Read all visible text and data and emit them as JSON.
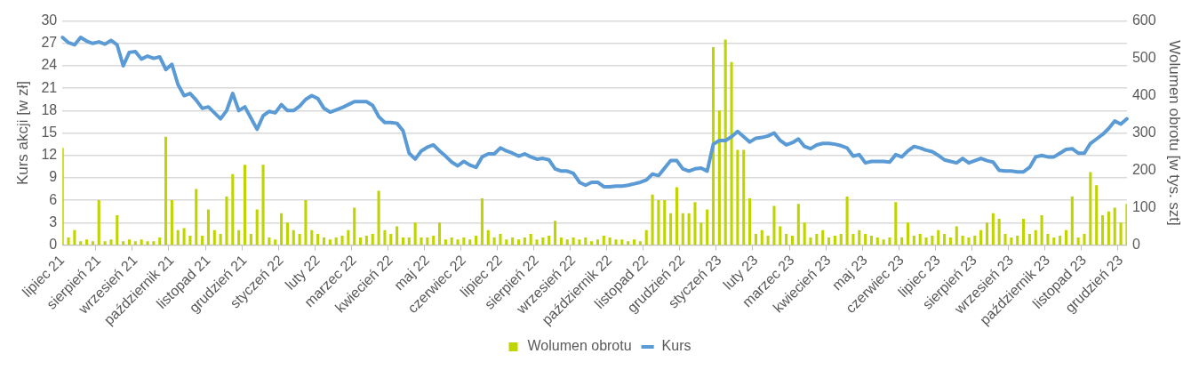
{
  "chart_data": {
    "type": "bar",
    "ylabel": "Kurs akcji [w zł]",
    "y2label": "Wolumen obrotu [w tys. szt]",
    "categories": [
      "lipiec 21",
      null,
      null,
      null,
      null,
      null,
      "sierpień 21",
      null,
      null,
      null,
      null,
      null,
      "wrzesień 21",
      null,
      null,
      null,
      null,
      null,
      "październik 21",
      null,
      null,
      null,
      null,
      null,
      "listopad 21",
      null,
      null,
      null,
      null,
      null,
      "grudzień 21",
      null,
      null,
      null,
      null,
      null,
      "styczeń 22",
      null,
      null,
      null,
      null,
      null,
      "luty 22",
      null,
      null,
      null,
      null,
      null,
      "marzec 22",
      null,
      null,
      null,
      null,
      null,
      "kwiecień 22",
      null,
      null,
      null,
      null,
      null,
      "maj 22",
      null,
      null,
      null,
      null,
      null,
      "czerwiec 22",
      null,
      null,
      null,
      null,
      null,
      "lipiec 22",
      null,
      null,
      null,
      null,
      null,
      "sierpień 22",
      null,
      null,
      null,
      null,
      null,
      "wrzesień 22",
      null,
      null,
      null,
      null,
      null,
      "październik 22",
      null,
      null,
      null,
      null,
      null,
      "listopad 22",
      null,
      null,
      null,
      null,
      null,
      "grudzień 22",
      null,
      null,
      null,
      null,
      null,
      "styczeń 23",
      null,
      null,
      null,
      null,
      null,
      "luty 23",
      null,
      null,
      null,
      null,
      null,
      "marzec 23",
      null,
      null,
      null,
      null,
      null,
      "kwiecień 23",
      null,
      null,
      null,
      null,
      null,
      "maj 23",
      null,
      null,
      null,
      null,
      null,
      "czerwiec 23",
      null,
      null,
      null,
      null,
      null,
      "lipiec 23",
      null,
      null,
      null,
      null,
      null,
      "sierpień 23",
      null,
      null,
      null,
      null,
      null,
      "wrzesień 23",
      null,
      null,
      null,
      null,
      null,
      "październik 23",
      null,
      null,
      null,
      null,
      null,
      "listopad 23",
      null,
      null,
      null,
      null,
      null,
      "grudzień 23",
      null
    ],
    "series": [
      {
        "name": "Wolumen obrotu",
        "axis": "y2",
        "color": "#c0d400",
        "values": [
          260,
          20,
          40,
          10,
          15,
          10,
          120,
          10,
          15,
          80,
          10,
          15,
          10,
          15,
          10,
          10,
          20,
          290,
          120,
          40,
          45,
          25,
          150,
          25,
          95,
          40,
          30,
          130,
          190,
          40,
          215,
          30,
          95,
          215,
          20,
          15,
          85,
          60,
          40,
          30,
          120,
          40,
          30,
          20,
          15,
          20,
          25,
          40,
          100,
          20,
          25,
          30,
          145,
          40,
          30,
          50,
          20,
          20,
          60,
          20,
          20,
          25,
          60,
          15,
          20,
          15,
          20,
          15,
          25,
          125,
          40,
          20,
          30,
          15,
          20,
          15,
          20,
          30,
          15,
          20,
          25,
          65,
          20,
          15,
          20,
          15,
          20,
          10,
          15,
          25,
          20,
          15,
          15,
          10,
          15,
          10,
          40,
          135,
          120,
          120,
          85,
          155,
          85,
          85,
          115,
          60,
          95,
          530,
          360,
          550,
          490,
          255,
          255,
          125,
          30,
          40,
          25,
          105,
          50,
          30,
          25,
          110,
          60,
          20,
          30,
          40,
          20,
          25,
          30,
          130,
          30,
          40,
          30,
          25,
          20,
          15,
          20,
          115,
          20,
          60,
          25,
          30,
          20,
          25,
          40,
          30,
          20,
          50,
          25,
          20,
          25,
          40,
          60,
          85,
          70,
          30,
          20,
          25,
          70,
          30,
          40,
          80,
          30,
          20,
          25,
          40,
          130,
          20,
          30,
          195,
          160,
          80,
          90,
          100,
          60,
          110
        ]
      },
      {
        "name": "Kurs",
        "type": "line",
        "axis": "y",
        "color": "#5b9bd5",
        "marker": "none",
        "line_style": "solid",
        "values": [
          27.8,
          27.1,
          26.8,
          27.8,
          27.3,
          27.0,
          27.2,
          26.9,
          27.4,
          26.8,
          24.0,
          25.8,
          25.9,
          24.9,
          25.3,
          25.0,
          25.2,
          23.5,
          24.2,
          21.5,
          20.0,
          20.3,
          19.4,
          18.3,
          18.5,
          17.7,
          16.9,
          18.0,
          20.3,
          18.0,
          18.5,
          17.0,
          15.5,
          17.3,
          17.9,
          17.7,
          18.8,
          18.0,
          18.0,
          18.6,
          19.5,
          20.0,
          19.6,
          18.3,
          17.8,
          18.1,
          18.4,
          18.8,
          19.2,
          19.2,
          19.2,
          18.7,
          17.2,
          16.4,
          16.4,
          16.3,
          15.3,
          12.3,
          11.5,
          12.6,
          13.1,
          13.4,
          12.6,
          11.9,
          11.1,
          10.6,
          11.2,
          10.7,
          10.4,
          11.8,
          12.2,
          12.2,
          13.0,
          12.6,
          12.3,
          11.9,
          12.2,
          11.8,
          11.5,
          11.6,
          11.4,
          10.2,
          9.9,
          9.9,
          9.6,
          8.4,
          8.0,
          8.4,
          8.4,
          7.8,
          7.8,
          7.9,
          7.9,
          8.0,
          8.2,
          8.4,
          8.7,
          9.5,
          9.3,
          10.3,
          11.3,
          11.3,
          10.2,
          9.9,
          10.2,
          10.3,
          9.9,
          13.5,
          14.0,
          14.0,
          14.5,
          15.2,
          14.5,
          13.8,
          14.3,
          14.4,
          14.6,
          15.0,
          14.0,
          13.4,
          13.7,
          14.2,
          13.2,
          12.9,
          13.4,
          13.6,
          13.6,
          13.5,
          13.3,
          13.0,
          11.9,
          12.1,
          11.0,
          11.2,
          11.2,
          11.2,
          11.1,
          12.1,
          11.8,
          12.6,
          13.2,
          13.0,
          12.7,
          12.5,
          12.0,
          11.4,
          11.2,
          11.0,
          11.6,
          11.0,
          11.3,
          11.6,
          11.3,
          11.1,
          10.0,
          9.9,
          9.9,
          9.8,
          9.8,
          10.4,
          11.8,
          12.0,
          11.8,
          11.8,
          12.3,
          12.8,
          12.9,
          12.3,
          12.3,
          13.6,
          14.2,
          14.8,
          15.6,
          16.6,
          16.2,
          16.9
        ]
      }
    ],
    "ylim": [
      0,
      30
    ],
    "yticks": [
      0,
      3,
      6,
      9,
      12,
      15,
      18,
      21,
      24,
      27,
      30
    ],
    "y2lim": [
      0,
      600
    ],
    "y2ticks": [
      0,
      100,
      200,
      300,
      400,
      500,
      600
    ],
    "grid": "y",
    "legend": "bottom"
  }
}
